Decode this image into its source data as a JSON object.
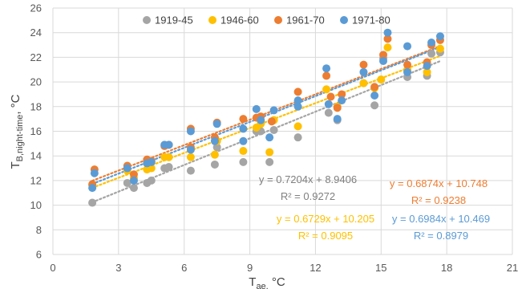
{
  "chart_data": {
    "type": "scatter",
    "xlabel_main": "T",
    "xlabel_sub": "ae,",
    "xlabel_unit": " °C",
    "ylabel_main": "T",
    "ylabel_sub": "B,night-time",
    "ylabel_unit": ", °C",
    "xlim": [
      0,
      21
    ],
    "ylim": [
      6,
      26
    ],
    "xticks": [
      0,
      3,
      6,
      9,
      12,
      15,
      18,
      21
    ],
    "yticks": [
      6,
      8,
      10,
      12,
      14,
      16,
      18,
      20,
      22,
      24,
      26
    ],
    "grid": true,
    "legend_position": "top",
    "series": [
      {
        "name": "1919-45",
        "color": "#a5a5a5",
        "trend": {
          "slope": 0.7204,
          "intercept": 8.9406,
          "equation": "y = 0.7204x + 8.9406",
          "r2": "R² = 0.9272"
        },
        "points": [
          [
            1.8,
            10.2
          ],
          [
            3.4,
            11.8
          ],
          [
            3.7,
            11.4
          ],
          [
            4.3,
            11.8
          ],
          [
            4.5,
            12.0
          ],
          [
            5.1,
            13.0
          ],
          [
            5.3,
            13.1
          ],
          [
            6.3,
            12.8
          ],
          [
            7.4,
            13.3
          ],
          [
            7.5,
            14.7
          ],
          [
            8.7,
            13.5
          ],
          [
            9.3,
            16.0
          ],
          [
            9.5,
            16.0
          ],
          [
            9.9,
            13.5
          ],
          [
            10.1,
            16.1
          ],
          [
            11.2,
            15.5
          ],
          [
            12.6,
            17.5
          ],
          [
            13.0,
            16.9
          ],
          [
            14.2,
            19.9
          ],
          [
            14.7,
            18.1
          ],
          [
            15.1,
            21.9
          ],
          [
            16.2,
            20.4
          ],
          [
            17.1,
            20.5
          ],
          [
            17.3,
            22.3
          ],
          [
            17.7,
            22.4
          ]
        ]
      },
      {
        "name": "1946-60",
        "color": "#ffc000",
        "trend": {
          "slope": 0.6729,
          "intercept": 10.205,
          "equation": "y = 0.6729x + 10.205",
          "r2": "R² = 0.9095"
        },
        "points": [
          [
            1.8,
            11.6
          ],
          [
            3.4,
            12.8
          ],
          [
            3.7,
            12.2
          ],
          [
            4.3,
            12.9
          ],
          [
            4.5,
            13.0
          ],
          [
            5.1,
            13.9
          ],
          [
            5.3,
            13.9
          ],
          [
            6.3,
            13.9
          ],
          [
            7.4,
            14.1
          ],
          [
            7.5,
            15.2
          ],
          [
            8.7,
            14.4
          ],
          [
            9.3,
            16.3
          ],
          [
            9.5,
            16.6
          ],
          [
            9.9,
            14.3
          ],
          [
            10.1,
            16.9
          ],
          [
            11.2,
            16.4
          ],
          [
            12.5,
            19.4
          ],
          [
            13.0,
            18.0
          ],
          [
            14.2,
            19.9
          ],
          [
            14.7,
            19.5
          ],
          [
            15.0,
            20.2
          ],
          [
            15.3,
            22.8
          ],
          [
            16.2,
            21.0
          ],
          [
            17.1,
            20.8
          ],
          [
            17.7,
            22.7
          ]
        ]
      },
      {
        "name": "1961-70",
        "color": "#ed7d31",
        "trend": {
          "slope": 0.6874,
          "intercept": 10.748,
          "equation": "y = 0.6874x + 10.748",
          "r2": "R² = 0.9238"
        },
        "points": [
          [
            1.8,
            11.7
          ],
          [
            1.9,
            12.9
          ],
          [
            3.4,
            13.2
          ],
          [
            3.7,
            12.5
          ],
          [
            4.3,
            13.7
          ],
          [
            4.5,
            13.6
          ],
          [
            5.1,
            14.8
          ],
          [
            5.3,
            14.9
          ],
          [
            6.3,
            16.2
          ],
          [
            6.3,
            14.7
          ],
          [
            7.4,
            15.5
          ],
          [
            7.5,
            16.7
          ],
          [
            8.7,
            17.0
          ],
          [
            9.3,
            17.1
          ],
          [
            9.5,
            17.2
          ],
          [
            10.0,
            16.8
          ],
          [
            11.2,
            19.2
          ],
          [
            12.5,
            20.5
          ],
          [
            12.7,
            18.8
          ],
          [
            13.0,
            17.9
          ],
          [
            13.2,
            19.0
          ],
          [
            14.2,
            21.4
          ],
          [
            14.7,
            19.6
          ],
          [
            15.1,
            22.2
          ],
          [
            15.3,
            23.5
          ],
          [
            16.2,
            21.4
          ],
          [
            17.1,
            21.6
          ],
          [
            17.3,
            23.0
          ],
          [
            17.7,
            23.4
          ]
        ]
      },
      {
        "name": "1971-80",
        "color": "#5b9bd5",
        "trend": {
          "slope": 0.6984,
          "intercept": 10.469,
          "equation": "y = 0.6984x + 10.469",
          "r2": "R² = 0.8979"
        },
        "points": [
          [
            1.8,
            11.4
          ],
          [
            1.9,
            12.6
          ],
          [
            3.4,
            13.0
          ],
          [
            3.7,
            12.0
          ],
          [
            4.3,
            13.4
          ],
          [
            4.5,
            13.5
          ],
          [
            5.1,
            14.9
          ],
          [
            5.3,
            14.9
          ],
          [
            6.3,
            16.0
          ],
          [
            6.3,
            14.5
          ],
          [
            7.4,
            15.2
          ],
          [
            7.5,
            16.6
          ],
          [
            8.7,
            15.2
          ],
          [
            8.7,
            16.2
          ],
          [
            9.3,
            17.8
          ],
          [
            9.5,
            16.9
          ],
          [
            9.9,
            15.5
          ],
          [
            10.1,
            17.7
          ],
          [
            11.2,
            18.0
          ],
          [
            11.2,
            18.5
          ],
          [
            12.5,
            21.1
          ],
          [
            12.6,
            18.2
          ],
          [
            13.0,
            17.0
          ],
          [
            13.2,
            18.5
          ],
          [
            14.2,
            20.8
          ],
          [
            14.7,
            18.9
          ],
          [
            15.1,
            21.7
          ],
          [
            15.3,
            24.0
          ],
          [
            16.2,
            22.9
          ],
          [
            16.2,
            20.8
          ],
          [
            17.1,
            21.3
          ],
          [
            17.3,
            23.2
          ],
          [
            17.7,
            23.7
          ]
        ]
      }
    ]
  }
}
